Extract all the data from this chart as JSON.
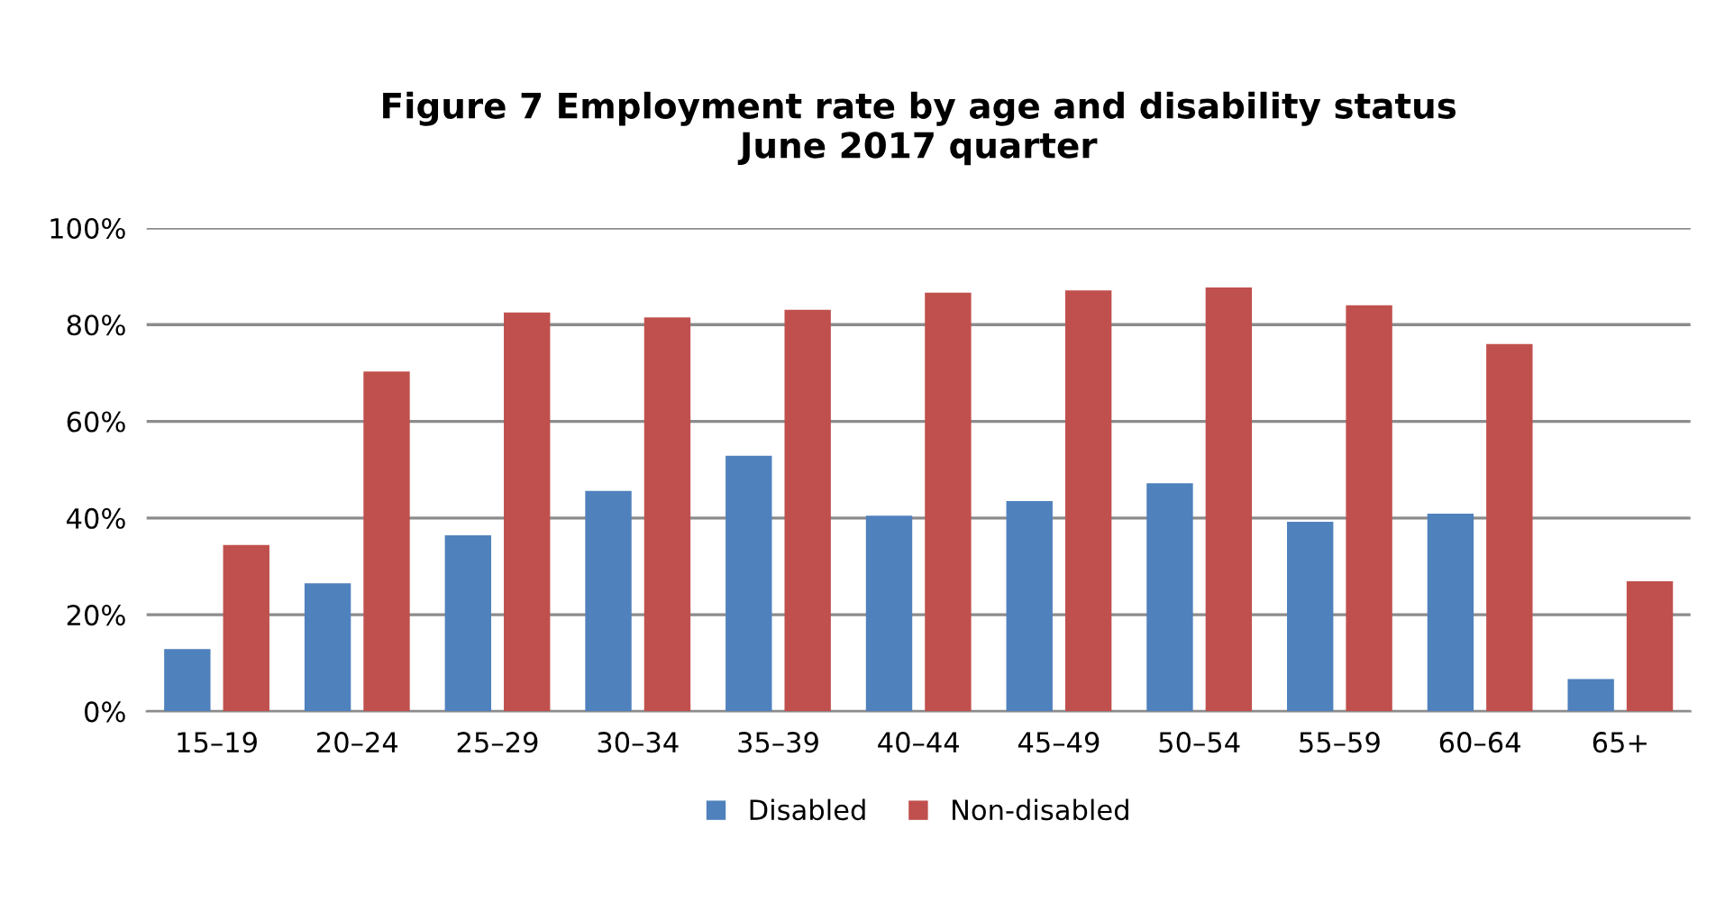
{
  "chart_data": {
    "type": "bar",
    "title": "Figure 7 Employment rate by age and disability status\nJune 2017 quarter",
    "categories": [
      "15–19",
      "20–24",
      "25–29",
      "30–34",
      "35–39",
      "40–44",
      "45–49",
      "50–54",
      "55–59",
      "60–64",
      "65+"
    ],
    "series": [
      {
        "name": "Disabled",
        "color": "#4f81bd",
        "values": [
          12.9,
          26.5,
          36.4,
          45.6,
          52.9,
          40.5,
          43.5,
          47.2,
          39.2,
          40.9,
          6.7
        ]
      },
      {
        "name": "Non-disabled",
        "color": "#c0504d",
        "values": [
          34.4,
          70.3,
          82.5,
          81.5,
          83.1,
          86.6,
          87.1,
          87.7,
          84.0,
          76.0,
          26.9
        ]
      }
    ],
    "ylim": [
      0,
      100
    ],
    "yticks": [
      {
        "value": 0,
        "label": "0%"
      },
      {
        "value": 20,
        "label": "20%"
      },
      {
        "value": 40,
        "label": "40%"
      },
      {
        "value": 60,
        "label": "60%"
      },
      {
        "value": 80,
        "label": "80%"
      },
      {
        "value": 100,
        "label": "100%"
      }
    ],
    "grid": "y",
    "legend": "bottom"
  }
}
